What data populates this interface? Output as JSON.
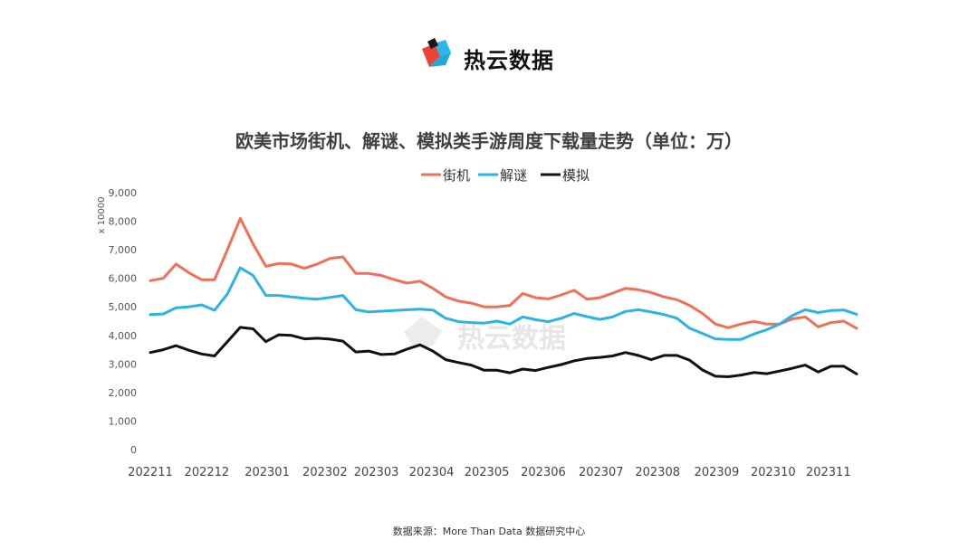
{
  "logo": {
    "brand": "热云数据"
  },
  "watermark": "热云数据",
  "source": "数据来源：More Than Data 数据研究中心",
  "chart_data": {
    "type": "line",
    "title": "欧美市场街机、解谜、模拟类手游周度下载量走势（单位：万）",
    "ylabel": "x 10000",
    "ylim": [
      0,
      9000
    ],
    "yticks": [
      0,
      1000,
      2000,
      3000,
      4000,
      5000,
      6000,
      7000,
      8000,
      9000
    ],
    "ytick_labels": [
      "0",
      "1,000",
      "2,000",
      "3,000",
      "4,000",
      "5,000",
      "6,000",
      "7,000",
      "8,000",
      "9,000"
    ],
    "x_tick_labels": [
      {
        "label": "202211",
        "index": 0
      },
      {
        "label": "202212",
        "index": 4.4
      },
      {
        "label": "202301",
        "index": 9.1
      },
      {
        "label": "202302",
        "index": 13.6
      },
      {
        "label": "202303",
        "index": 17.6
      },
      {
        "label": "202304",
        "index": 21.9
      },
      {
        "label": "202305",
        "index": 26.2
      },
      {
        "label": "202306",
        "index": 30.6
      },
      {
        "label": "202307",
        "index": 35.1
      },
      {
        "label": "202308",
        "index": 39.5
      },
      {
        "label": "202309",
        "index": 44.1
      },
      {
        "label": "202310",
        "index": 48.5
      },
      {
        "label": "202311",
        "index": 52.8
      }
    ],
    "grid": false,
    "legend": "top-center",
    "series": [
      {
        "name": "街机",
        "color": "#F07057",
        "values": [
          5920,
          6000,
          6500,
          6200,
          5950,
          5950,
          7000,
          8100,
          7200,
          6420,
          6520,
          6500,
          6350,
          6500,
          6700,
          6750,
          6170,
          6170,
          6100,
          5950,
          5830,
          5900,
          5650,
          5350,
          5200,
          5130,
          5000,
          5000,
          5050,
          5470,
          5320,
          5280,
          5420,
          5580,
          5270,
          5320,
          5480,
          5650,
          5600,
          5500,
          5350,
          5250,
          5050,
          4770,
          4400,
          4270,
          4400,
          4490,
          4400,
          4400,
          4580,
          4650,
          4300,
          4450,
          4500,
          4250
        ]
      },
      {
        "name": "解谜",
        "color": "#2BB3E6",
        "values": [
          4730,
          4750,
          4970,
          5000,
          5070,
          4880,
          5450,
          6370,
          6100,
          5400,
          5400,
          5350,
          5300,
          5270,
          5330,
          5400,
          4900,
          4820,
          4850,
          4870,
          4900,
          4920,
          4890,
          4600,
          4480,
          4450,
          4430,
          4500,
          4400,
          4650,
          4550,
          4480,
          4600,
          4770,
          4660,
          4560,
          4650,
          4840,
          4900,
          4820,
          4730,
          4600,
          4250,
          4070,
          3880,
          3860,
          3860,
          4050,
          4200,
          4400,
          4700,
          4900,
          4800,
          4870,
          4890,
          4740
        ]
      },
      {
        "name": "模拟",
        "color": "#111111",
        "values": [
          3400,
          3500,
          3640,
          3480,
          3350,
          3280,
          3780,
          4280,
          4230,
          3780,
          4020,
          4000,
          3880,
          3900,
          3870,
          3800,
          3420,
          3450,
          3330,
          3350,
          3520,
          3670,
          3450,
          3150,
          3050,
          2960,
          2780,
          2780,
          2690,
          2820,
          2770,
          2880,
          2980,
          3110,
          3190,
          3230,
          3280,
          3400,
          3300,
          3150,
          3300,
          3300,
          3130,
          2790,
          2570,
          2550,
          2610,
          2700,
          2660,
          2750,
          2850,
          2960,
          2720,
          2920,
          2920,
          2650
        ]
      }
    ]
  }
}
